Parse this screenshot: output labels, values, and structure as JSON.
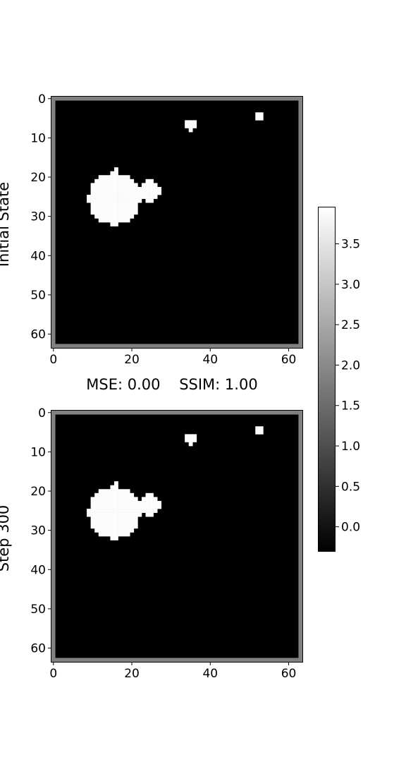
{
  "chart_data": [
    {
      "type": "heatmap",
      "ylabel": "Initial State",
      "grid_size": 64,
      "xticks": [
        0,
        20,
        40,
        60
      ],
      "yticks": [
        0,
        10,
        20,
        30,
        40,
        50,
        60
      ],
      "border_value": 1.85,
      "background_value": -0.3,
      "foreground_value": 3.9,
      "white_shapes": [
        {
          "kind": "disk",
          "cx": 15.5,
          "cy": 25.5,
          "r": 6.6
        },
        {
          "kind": "disk",
          "cx": 24.5,
          "cy": 23.5,
          "r": 2.6
        },
        {
          "kind": "rect",
          "x0": 20,
          "x1": 22,
          "y0": 23,
          "y1": 24
        },
        {
          "kind": "rect",
          "x0": 16,
          "x1": 16,
          "y0": 18,
          "y1": 18
        },
        {
          "kind": "rect",
          "x0": 34,
          "x1": 36,
          "y0": 6,
          "y1": 7
        },
        {
          "kind": "rect",
          "x0": 35,
          "x1": 35,
          "y0": 8,
          "y1": 8
        },
        {
          "kind": "rect",
          "x0": 52,
          "x1": 53,
          "y0": 4,
          "y1": 5
        }
      ]
    },
    {
      "type": "heatmap",
      "ylabel": "Step 300",
      "title": "MSE: 0.00    SSIM: 1.00",
      "grid_size": 64,
      "xticks": [
        0,
        20,
        40,
        60
      ],
      "yticks": [
        0,
        10,
        20,
        30,
        40,
        50,
        60
      ],
      "border_value": 1.85,
      "background_value": -0.3,
      "foreground_value": 3.9,
      "white_shapes": [
        {
          "kind": "disk",
          "cx": 15.5,
          "cy": 25.5,
          "r": 6.6
        },
        {
          "kind": "disk",
          "cx": 24.5,
          "cy": 23.5,
          "r": 2.6
        },
        {
          "kind": "rect",
          "x0": 20,
          "x1": 22,
          "y0": 23,
          "y1": 24
        },
        {
          "kind": "rect",
          "x0": 16,
          "x1": 16,
          "y0": 18,
          "y1": 18
        },
        {
          "kind": "rect",
          "x0": 34,
          "x1": 36,
          "y0": 6,
          "y1": 7
        },
        {
          "kind": "rect",
          "x0": 35,
          "x1": 35,
          "y0": 8,
          "y1": 8
        },
        {
          "kind": "rect",
          "x0": 52,
          "x1": 53,
          "y0": 4,
          "y1": 5
        }
      ]
    }
  ],
  "colorbar": {
    "colormap": "gray",
    "range": [
      -0.3,
      3.95
    ],
    "ticks": [
      0.0,
      0.5,
      1.0,
      1.5,
      2.0,
      2.5,
      3.0,
      3.5
    ],
    "tick_labels": [
      "0.0",
      "0.5",
      "1.0",
      "1.5",
      "2.0",
      "2.5",
      "3.0",
      "3.5"
    ]
  }
}
